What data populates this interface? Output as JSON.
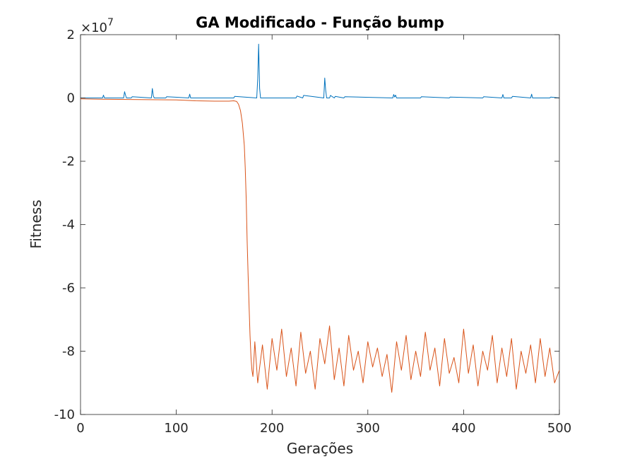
{
  "chart_data": {
    "type": "line",
    "title": "GA Modificado - Função bump",
    "xlabel": "Gerações",
    "ylabel": "Fitness",
    "xlim": [
      0,
      500
    ],
    "ylim": [
      -100000000,
      20000000
    ],
    "x_ticks": [
      0,
      100,
      200,
      300,
      400,
      500
    ],
    "y_ticks": [
      -10,
      -8,
      -6,
      -4,
      -2,
      0,
      2
    ],
    "y_exponent_base": "10",
    "y_exponent_power": "7",
    "grid": false,
    "legend": "none",
    "colors": {
      "series1": "#0072BD",
      "series2": "#D95319"
    },
    "series": [
      {
        "x": [
          0,
          1,
          23,
          24,
          25,
          45,
          46,
          47,
          48,
          53,
          54,
          74,
          75,
          76,
          77,
          89,
          90,
          113,
          114,
          115,
          160,
          161,
          184,
          185,
          186,
          187,
          188,
          225,
          226,
          232,
          233,
          254,
          255,
          256,
          257,
          260,
          261,
          265,
          266,
          275,
          276,
          326,
          327,
          328,
          329,
          330,
          355,
          356,
          385,
          386,
          420,
          421,
          440,
          441,
          442,
          450,
          451,
          470,
          471,
          472,
          490,
          491,
          500
        ],
        "y": [
          0,
          0,
          0,
          900000,
          0,
          0,
          2000000,
          900000,
          0,
          0,
          400000,
          0,
          3000000,
          600000,
          0,
          0,
          400000,
          0,
          1200000,
          0,
          0,
          500000,
          0,
          6000000,
          17000000,
          3000000,
          0,
          0,
          600000,
          0,
          800000,
          0,
          6300000,
          2500000,
          0,
          0,
          800000,
          0,
          500000,
          0,
          400000,
          0,
          1100000,
          300000,
          900000,
          0,
          0,
          400000,
          0,
          300000,
          0,
          400000,
          0,
          1100000,
          0,
          0,
          500000,
          0,
          1200000,
          0,
          0,
          300000,
          0
        ]
      },
      {
        "x": [
          0,
          20,
          60,
          100,
          120,
          140,
          150,
          155,
          160,
          163,
          165,
          167,
          169,
          171,
          172,
          173,
          174,
          175,
          176,
          177,
          178,
          179,
          180,
          181,
          182,
          185,
          190,
          195,
          200,
          205,
          210,
          215,
          220,
          225,
          230,
          235,
          240,
          245,
          250,
          255,
          260,
          265,
          270,
          275,
          280,
          285,
          290,
          295,
          300,
          305,
          310,
          315,
          320,
          325,
          330,
          335,
          340,
          345,
          350,
          355,
          360,
          365,
          370,
          375,
          380,
          385,
          390,
          395,
          400,
          405,
          410,
          415,
          420,
          425,
          430,
          435,
          440,
          445,
          450,
          455,
          460,
          465,
          470,
          475,
          480,
          485,
          490,
          495,
          500
        ],
        "y": [
          -300000,
          -400000,
          -500000,
          -600000,
          -900000,
          -1000000,
          -1000000,
          -1000000,
          -900000,
          -1100000,
          -2000000,
          -4000000,
          -8000000,
          -15000000,
          -22000000,
          -32000000,
          -45000000,
          -56000000,
          -66000000,
          -75000000,
          -82000000,
          -86000000,
          -88000000,
          -83000000,
          -77000000,
          -90000000,
          -78000000,
          -92000000,
          -76000000,
          -86000000,
          -73000000,
          -88000000,
          -79000000,
          -91000000,
          -74000000,
          -87000000,
          -80000000,
          -92000000,
          -76000000,
          -84000000,
          -72000000,
          -89000000,
          -79000000,
          -91000000,
          -75000000,
          -86000000,
          -80000000,
          -90000000,
          -77000000,
          -85000000,
          -79000000,
          -88000000,
          -81000000,
          -93000000,
          -77000000,
          -86000000,
          -75000000,
          -89000000,
          -80000000,
          -88000000,
          -74000000,
          -86000000,
          -79000000,
          -91000000,
          -76000000,
          -87000000,
          -82000000,
          -90000000,
          -73000000,
          -87000000,
          -78000000,
          -91000000,
          -80000000,
          -86000000,
          -75000000,
          -90000000,
          -79000000,
          -88000000,
          -76000000,
          -92000000,
          -80000000,
          -87000000,
          -78000000,
          -90000000,
          -76000000,
          -88000000,
          -79000000,
          -90000000,
          -86000000
        ]
      }
    ]
  }
}
